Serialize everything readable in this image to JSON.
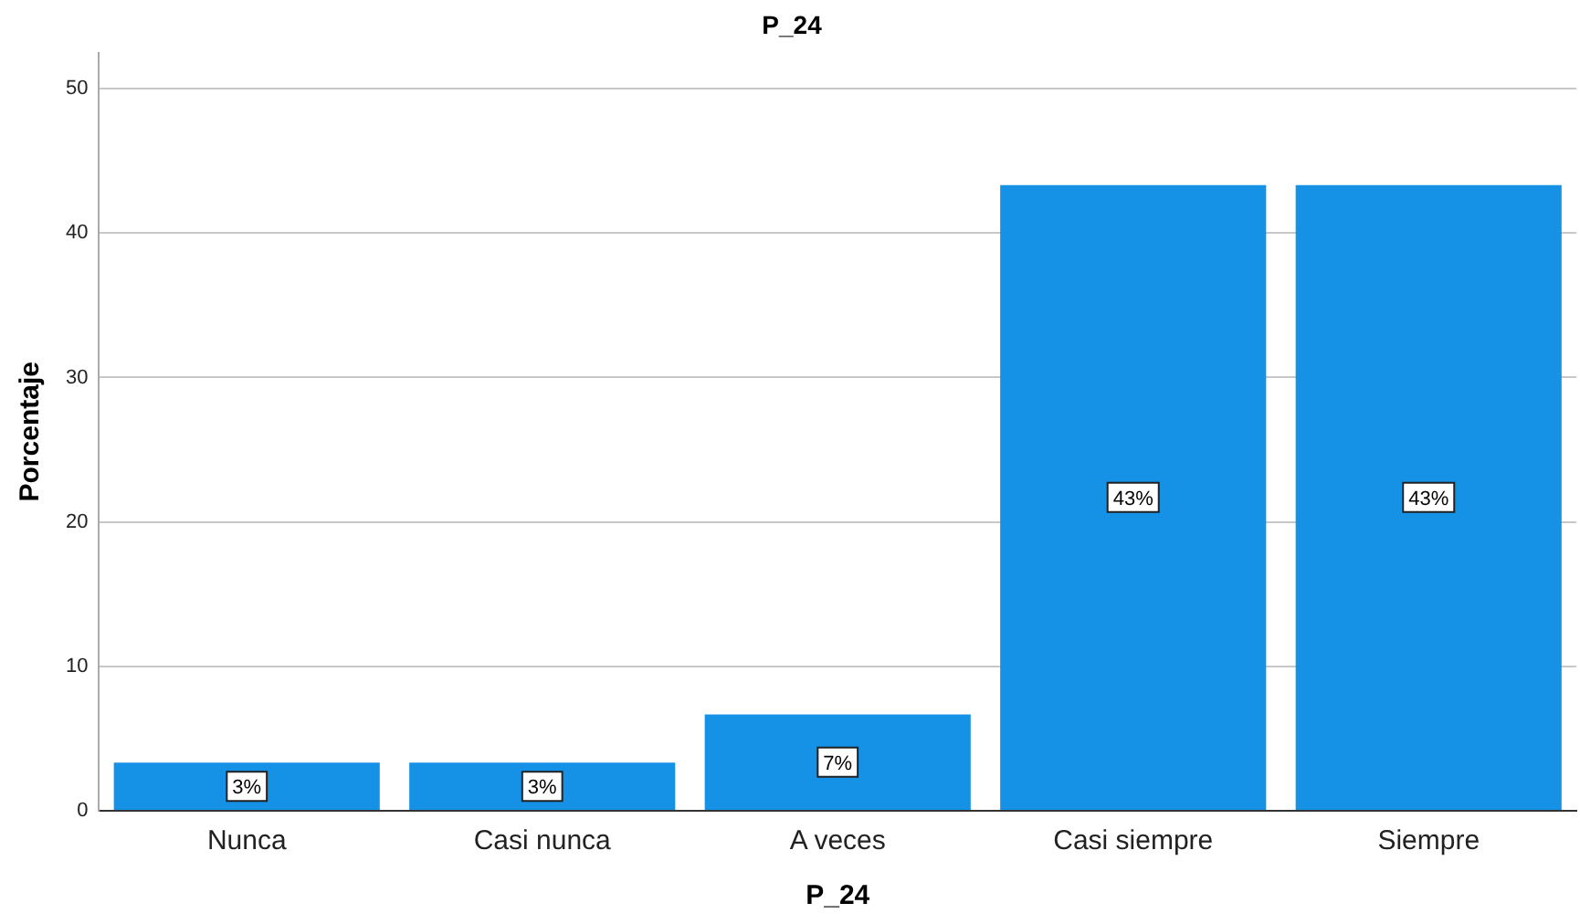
{
  "chart_data": {
    "type": "bar",
    "title": "P_24",
    "xlabel": "P_24",
    "ylabel": "Porcentaje",
    "categories": [
      "Nunca",
      "Casi nunca",
      "A veces",
      "Casi siempre",
      "Siempre"
    ],
    "values": [
      3.33,
      3.33,
      6.67,
      43.33,
      43.33
    ],
    "value_labels": [
      "3%",
      "3%",
      "7%",
      "43%",
      "43%"
    ],
    "color": "#1591e6",
    "ylim": [
      0,
      52.5
    ],
    "yticks": [
      0,
      10,
      20,
      30,
      40,
      50
    ],
    "grid": "y",
    "legend": false
  }
}
